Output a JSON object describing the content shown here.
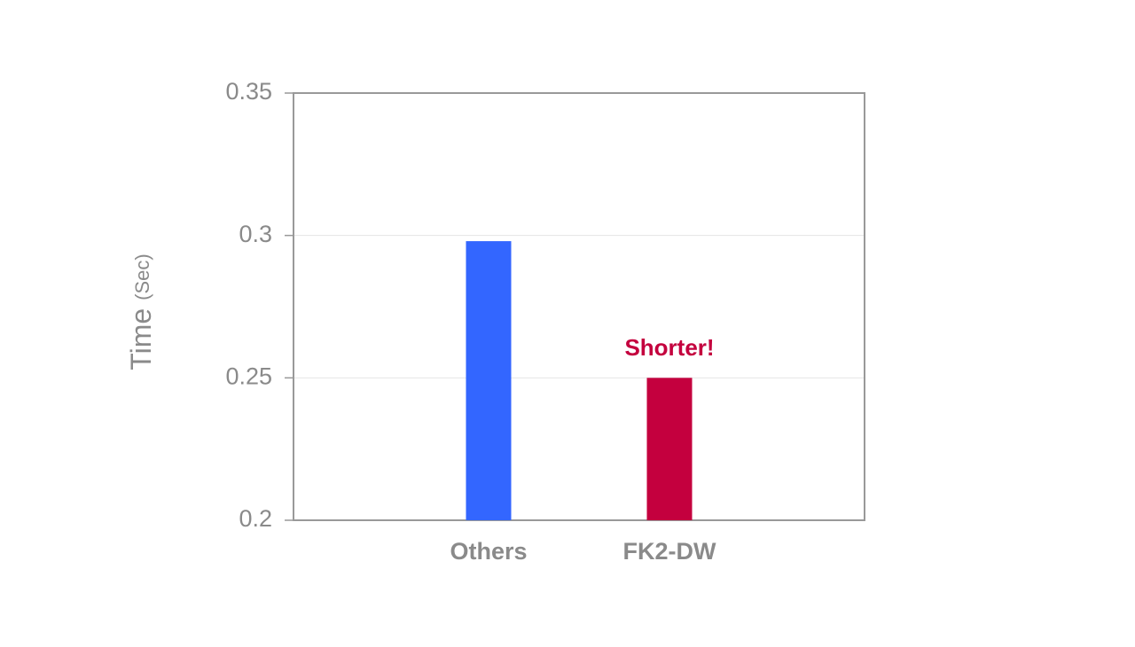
{
  "chart_data": {
    "type": "bar",
    "y_label": "Time",
    "y_label_unit": "(Sec)",
    "categories": [
      "Others",
      "FK2-DW"
    ],
    "values": [
      0.298,
      0.25
    ],
    "colors": [
      "#3366ff",
      "#c4003e"
    ],
    "annotation": "Shorter!",
    "ylim": [
      0.2,
      0.35
    ],
    "yticks": [
      0.2,
      0.25,
      0.3,
      0.35
    ],
    "grid": true
  }
}
